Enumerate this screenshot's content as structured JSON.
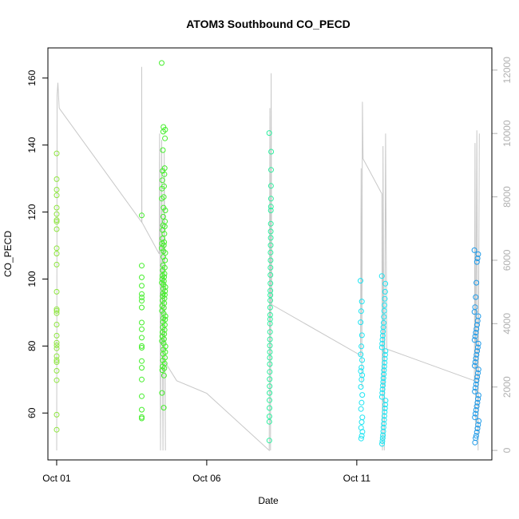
{
  "chart_data": {
    "type": "scatter",
    "title": "ATOM3 Southbound CO_PECD",
    "xlabel": "Date",
    "ylabel": "CO_PECD",
    "x_range": [
      "2023-09-30T17:00",
      "2023-10-15T12:00"
    ],
    "x_ticks": [
      {
        "date": "2023-10-01",
        "label": "Oct 01"
      },
      {
        "date": "2023-10-06",
        "label": "Oct 06"
      },
      {
        "date": "2023-10-11",
        "label": "Oct 11"
      }
    ],
    "ylim": [
      46,
      169
    ],
    "y_ticks": [
      60,
      80,
      100,
      120,
      140,
      160
    ],
    "y2lim": [
      -300,
      12700
    ],
    "y2_ticks": [
      0,
      2000,
      4000,
      6000,
      8000,
      10000,
      12000
    ],
    "grid": false,
    "legend": "none",
    "colors": {
      "overlay_line": "#c8c8c8",
      "group_1": "#8ee53f",
      "group_2": "#44ee2b",
      "group_3": "#2ef0a0",
      "group_4": "#1ee4f2",
      "group_5": "#1e9ae8"
    },
    "scatter_groups": [
      {
        "color_key": "group_1",
        "time": "2023-10-01T00:00",
        "values": [
          137.5,
          129.8,
          126.7,
          125.0,
          121.3,
          119.4,
          117.6,
          117.1,
          114.9,
          109.2,
          107.6,
          104.3,
          96.2,
          91.0,
          90.5,
          89.8,
          86.4,
          83.1,
          81.0,
          80.2,
          79.3,
          77.0,
          75.8,
          75.2,
          72.6,
          69.8,
          59.5,
          55.0
        ]
      },
      {
        "color_key": "group_2",
        "time": "2023-10-03T20:00",
        "values": [
          119.0,
          104.0,
          100.5,
          98.0,
          95.5,
          94.5,
          93.5,
          91.5,
          87.0,
          85.0,
          82.5,
          80.0,
          79.5,
          75.5,
          73.5,
          70.0,
          65.0,
          61.0,
          58.8,
          58.4
        ]
      },
      {
        "color_key": "group_2",
        "time": "2023-10-04T12:00",
        "spread_hours": 3,
        "values": [
          164.5,
          145.4,
          144.6,
          144.0,
          142.0,
          138.5,
          133.1,
          132.3,
          131.3,
          129.5,
          127.7,
          127.0,
          124.5,
          124.0,
          121.3,
          120.5,
          118.6,
          117.2,
          116.0,
          115.7,
          114.6,
          113.5,
          112.1,
          111.0,
          110.6,
          110.1,
          109.2,
          108.3,
          107.8,
          106.6,
          105.6,
          104.1,
          103.4,
          102.6,
          101.6,
          101.0,
          100.6,
          100.0,
          99.4,
          98.9,
          98.3,
          97.6,
          97.1,
          96.4,
          95.7,
          95.3,
          94.9,
          94.2,
          93.6,
          92.8,
          92.0,
          91.4,
          90.5,
          89.7,
          88.9,
          88.3,
          87.9,
          87.2,
          86.3,
          85.6,
          84.8,
          84.1,
          83.6,
          82.9,
          82.1,
          81.5,
          80.8,
          79.9,
          79.0,
          78.2,
          77.6,
          76.5,
          75.7,
          74.8,
          73.9,
          73.4,
          72.8,
          71.2,
          66.0,
          61.6
        ]
      },
      {
        "color_key": "group_3",
        "time": "2023-10-08T02:00",
        "spread_hours": 1.5,
        "values": [
          143.6,
          138.0,
          132.6,
          127.8,
          124.0,
          121.6,
          120.5,
          116.5,
          114.2,
          112.3,
          110.1,
          107.9,
          105.6,
          103.4,
          101.2,
          98.7,
          96.5,
          95.2,
          93.6,
          91.5,
          89.3,
          88.0,
          86.7,
          84.2,
          82.0,
          80.1,
          78.2,
          76.5,
          74.6,
          72.3,
          70.1,
          68.0,
          66.0,
          63.8,
          61.5,
          59.0,
          57.4,
          51.8
        ]
      },
      {
        "color_key": "group_4",
        "time": "2023-10-11T03:00",
        "spread_hours": 1.5,
        "values": [
          99.5,
          93.3,
          90.4,
          87.1,
          83.2,
          79.9,
          77.5,
          75.8,
          73.6,
          72.5,
          71.3,
          70.0,
          67.8,
          65.4,
          63.1,
          61.2,
          58.7,
          57.3,
          55.6,
          54.4,
          53.2,
          52.4
        ]
      },
      {
        "color_key": "group_4",
        "time": "2023-10-11T20:00",
        "spread_hours": 3,
        "values": [
          100.9,
          98.6,
          96.2,
          94.1,
          92.2,
          90.5,
          88.7,
          86.9,
          85.6,
          84.3,
          83.1,
          81.9,
          80.7,
          79.6,
          78.5,
          77.4,
          76.2,
          75.0,
          73.9,
          72.8,
          71.6,
          70.4,
          69.3,
          68.2,
          67.1,
          66.0,
          64.8,
          63.7,
          62.5,
          61.4,
          60.3,
          59.1,
          58.0,
          56.8,
          55.7,
          54.5,
          53.4,
          52.5,
          51.6,
          50.8
        ]
      },
      {
        "color_key": "group_5",
        "time": "2023-10-14T22:00",
        "spread_hours": 3.5,
        "values": [
          108.6,
          107.4,
          106.2,
          105.1,
          98.9,
          94.6,
          91.6,
          90.2,
          88.9,
          87.5,
          86.3,
          85.1,
          84.0,
          82.9,
          81.8,
          80.7,
          79.6,
          78.5,
          77.4,
          76.3,
          75.2,
          74.1,
          73.0,
          71.9,
          70.8,
          69.7,
          68.6,
          67.5,
          66.4,
          65.3,
          64.2,
          63.1,
          62.0,
          60.9,
          59.8,
          58.7,
          57.6,
          56.5,
          55.4,
          54.3,
          53.2,
          52.5,
          51.2
        ]
      }
    ],
    "overlay_line_y2": [
      {
        "t": "2023-10-01T00:00",
        "v": 0
      },
      {
        "t": "2023-10-01T00:20",
        "v": 11200
      },
      {
        "t": "2023-10-01T01:00",
        "v": 11600
      },
      {
        "t": "2023-10-01T02:00",
        "v": 10800
      },
      {
        "t": "2023-10-03T20:00",
        "v": 7200
      },
      {
        "t": "2023-10-03T20:00",
        "v": 12100
      },
      {
        "t": "2023-10-03T20:10",
        "v": 7200
      },
      {
        "t": "2023-10-04T10:00",
        "v": 6200
      },
      {
        "t": "2023-10-04T10:20",
        "v": 10000
      },
      {
        "t": "2023-10-04T11:00",
        "v": 0
      },
      {
        "t": "2023-10-04T12:00",
        "v": 9800
      },
      {
        "t": "2023-10-04T13:00",
        "v": 0
      },
      {
        "t": "2023-10-04T14:00",
        "v": 9400
      },
      {
        "t": "2023-10-04T15:00",
        "v": 0
      },
      {
        "t": "2023-10-04T14:30",
        "v": 2800
      },
      {
        "t": "2023-10-05T00:00",
        "v": 2200
      },
      {
        "t": "2023-10-06T00:00",
        "v": 1800
      },
      {
        "t": "2023-10-08T02:00",
        "v": 0
      },
      {
        "t": "2023-10-08T02:30",
        "v": 10800
      },
      {
        "t": "2023-10-08T03:00",
        "v": 0
      },
      {
        "t": "2023-10-08T03:30",
        "v": 11900
      },
      {
        "t": "2023-10-08T04:00",
        "v": 4600
      },
      {
        "t": "2023-10-11T03:00",
        "v": 3000
      },
      {
        "t": "2023-10-11T03:30",
        "v": 8900
      },
      {
        "t": "2023-10-11T04:00",
        "v": 2000
      },
      {
        "t": "2023-10-11T04:30",
        "v": 11000
      },
      {
        "t": "2023-10-11T05:00",
        "v": 9200
      },
      {
        "t": "2023-10-11T20:00",
        "v": 8100
      },
      {
        "t": "2023-10-11T20:30",
        "v": 0
      },
      {
        "t": "2023-10-11T21:00",
        "v": 9600
      },
      {
        "t": "2023-10-11T22:00",
        "v": 0
      },
      {
        "t": "2023-10-11T23:00",
        "v": 10000
      },
      {
        "t": "2023-10-12T00:00",
        "v": 3200
      },
      {
        "t": "2023-10-14T22:00",
        "v": 2200
      },
      {
        "t": "2023-10-14T22:30",
        "v": 9700
      },
      {
        "t": "2023-10-14T23:00",
        "v": 600
      },
      {
        "t": "2023-10-15T00:00",
        "v": 10100
      },
      {
        "t": "2023-10-15T01:00",
        "v": 0
      },
      {
        "t": "2023-10-15T02:00",
        "v": 10000
      }
    ]
  }
}
